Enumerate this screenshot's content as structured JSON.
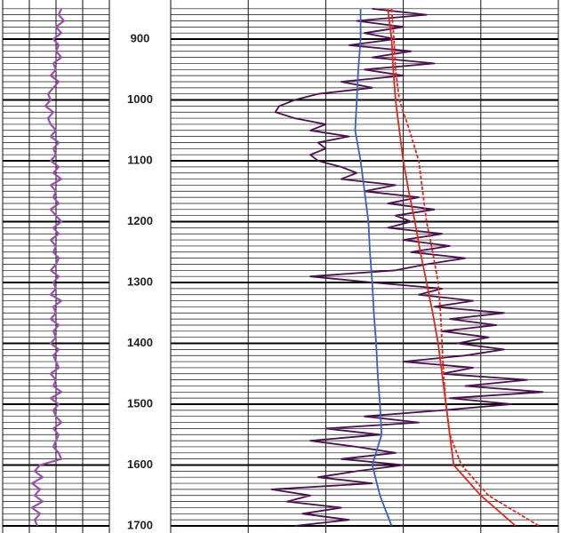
{
  "chart_data": {
    "type": "well-log",
    "ylim": [
      843,
      1700
    ],
    "yticks": [
      900,
      1000,
      1100,
      1200,
      1300,
      1400,
      1500,
      1600,
      1700
    ],
    "minor_grid_interval": 10,
    "grid": true,
    "tracks": [
      {
        "xlim": [
          0,
          4
        ],
        "xticks": [
          0,
          1,
          2,
          3,
          4
        ]
      },
      {
        "xlim": [
          0,
          5
        ],
        "xticks": [
          0,
          1,
          2,
          3,
          4,
          5
        ]
      }
    ],
    "series": [
      {
        "track": 0,
        "color": "#9b4fb0",
        "style": "solid",
        "depth": [
          850,
          860,
          870,
          880,
          890,
          900,
          910,
          920,
          930,
          940,
          950,
          960,
          970,
          980,
          990,
          1000,
          1010,
          1020,
          1030,
          1040,
          1050,
          1060,
          1070,
          1080,
          1090,
          1100,
          1110,
          1120,
          1130,
          1140,
          1150,
          1160,
          1170,
          1180,
          1190,
          1200,
          1210,
          1220,
          1230,
          1240,
          1250,
          1260,
          1270,
          1280,
          1290,
          1300,
          1310,
          1320,
          1330,
          1340,
          1350,
          1360,
          1370,
          1380,
          1390,
          1400,
          1410,
          1420,
          1430,
          1440,
          1450,
          1460,
          1470,
          1480,
          1490,
          1500,
          1510,
          1520,
          1530,
          1540,
          1550,
          1560,
          1570,
          1580,
          1590,
          1600,
          1610,
          1620,
          1630,
          1640,
          1650,
          1660,
          1670,
          1680,
          1690,
          1700
        ],
        "values": [
          2.2,
          2.1,
          2.3,
          2.0,
          2.2,
          1.9,
          2.1,
          2.0,
          2.2,
          1.9,
          2.0,
          1.8,
          2.1,
          1.9,
          1.7,
          1.8,
          1.6,
          1.9,
          1.7,
          1.8,
          2.0,
          1.8,
          2.1,
          1.9,
          2.0,
          1.8,
          2.1,
          1.9,
          2.2,
          1.8,
          2.0,
          1.9,
          2.1,
          1.8,
          2.0,
          2.2,
          1.9,
          2.1,
          1.8,
          2.0,
          1.9,
          2.1,
          2.0,
          1.8,
          2.1,
          1.9,
          2.0,
          1.8,
          2.2,
          1.9,
          2.0,
          1.8,
          2.1,
          1.9,
          2.0,
          1.8,
          2.1,
          1.9,
          2.0,
          2.1,
          1.8,
          2.0,
          1.9,
          2.2,
          1.8,
          2.1,
          1.9,
          2.0,
          2.2,
          1.9,
          2.1,
          2.0,
          1.9,
          2.1,
          2.2,
          1.4,
          1.2,
          1.5,
          1.1,
          1.4,
          1.2,
          1.5,
          1.1,
          1.4,
          1.2,
          1.3
        ]
      },
      {
        "track": 1,
        "color": "#4a1050",
        "style": "solid",
        "depth": [
          850,
          860,
          870,
          880,
          890,
          900,
          910,
          920,
          930,
          940,
          950,
          960,
          970,
          980,
          990,
          1000,
          1010,
          1020,
          1030,
          1040,
          1050,
          1060,
          1070,
          1080,
          1090,
          1100,
          1110,
          1120,
          1130,
          1140,
          1150,
          1160,
          1170,
          1180,
          1190,
          1200,
          1210,
          1220,
          1230,
          1240,
          1250,
          1260,
          1270,
          1280,
          1290,
          1300,
          1310,
          1320,
          1330,
          1340,
          1350,
          1360,
          1370,
          1380,
          1390,
          1400,
          1410,
          1420,
          1430,
          1440,
          1450,
          1460,
          1470,
          1480,
          1490,
          1500,
          1510,
          1520,
          1530,
          1540,
          1550,
          1560,
          1570,
          1580,
          1590,
          1600,
          1610,
          1620,
          1630,
          1640,
          1650,
          1660,
          1670,
          1680,
          1690,
          1700
        ],
        "values": [
          2.6,
          3.3,
          2.4,
          3.0,
          2.5,
          2.9,
          2.3,
          3.1,
          2.6,
          3.4,
          2.5,
          3.0,
          2.2,
          2.6,
          1.9,
          1.6,
          1.4,
          1.35,
          1.6,
          2.0,
          1.8,
          2.3,
          1.9,
          2.0,
          1.8,
          1.9,
          2.2,
          2.4,
          2.2,
          2.9,
          2.5,
          3.2,
          2.8,
          3.4,
          2.9,
          3.1,
          2.8,
          3.5,
          3.0,
          3.6,
          3.1,
          3.8,
          3.3,
          2.9,
          1.8,
          2.6,
          3.5,
          3.2,
          3.9,
          3.4,
          4.3,
          3.6,
          4.2,
          3.5,
          4.1,
          3.7,
          4.3,
          3.8,
          3.0,
          3.9,
          3.5,
          4.6,
          3.8,
          4.8,
          3.6,
          4.4,
          3.5,
          2.5,
          3.2,
          2.0,
          2.7,
          1.8,
          2.4,
          2.9,
          2.2,
          3.0,
          2.4,
          1.9,
          2.6,
          1.3,
          1.8,
          1.5,
          2.2,
          1.7,
          2.3,
          1.6
        ]
      },
      {
        "track": 1,
        "color": "#3a5fc8",
        "style": "solid",
        "depth": [
          850,
          900,
          950,
          1000,
          1050,
          1100,
          1150,
          1200,
          1250,
          1300,
          1350,
          1400,
          1450,
          1500,
          1550,
          1600,
          1650,
          1700
        ],
        "values": [
          2.45,
          2.45,
          2.42,
          2.4,
          2.38,
          2.45,
          2.5,
          2.55,
          2.57,
          2.6,
          2.62,
          2.65,
          2.67,
          2.7,
          2.72,
          2.6,
          2.7,
          2.85
        ]
      },
      {
        "track": 1,
        "color": "#e8241c",
        "style": "solid",
        "depth": [
          850,
          900,
          950,
          1000,
          1050,
          1100,
          1150,
          1200,
          1250,
          1300,
          1350,
          1400,
          1450,
          1500,
          1550,
          1600,
          1650,
          1700
        ],
        "values": [
          2.8,
          2.85,
          2.87,
          2.9,
          2.95,
          3.0,
          3.07,
          3.15,
          3.22,
          3.3,
          3.38,
          3.45,
          3.5,
          3.55,
          3.6,
          3.65,
          4.0,
          4.45
        ]
      },
      {
        "track": 1,
        "color": "#e8241c",
        "style": "dashed",
        "depth": [
          850,
          900,
          950,
          1000,
          1050,
          1100,
          1150,
          1200,
          1250,
          1300,
          1350,
          1400,
          1450,
          1500,
          1550,
          1600,
          1650,
          1700
        ],
        "values": [
          2.85,
          2.88,
          2.9,
          2.95,
          3.08,
          3.2,
          3.25,
          3.3,
          3.38,
          3.45,
          3.48,
          3.5,
          3.52,
          3.55,
          3.6,
          3.75,
          4.1,
          4.75
        ]
      }
    ]
  }
}
